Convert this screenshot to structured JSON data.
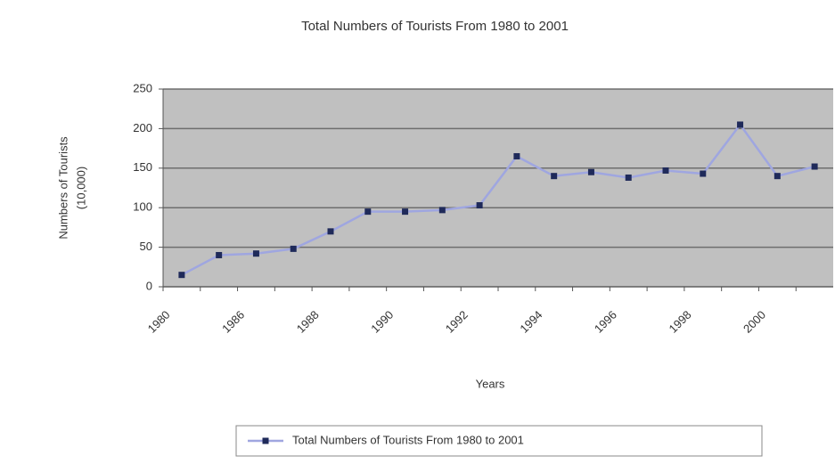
{
  "chart_data": {
    "type": "line",
    "title": "Total Numbers of Tourists From 1980 to 2001",
    "ylabel": [
      "Numbers of Tourists",
      "(10,000)"
    ],
    "xlabel": "Years",
    "categories": [
      "1980",
      null,
      "1986",
      null,
      "1988",
      null,
      "1990",
      null,
      "1992",
      null,
      "1994",
      null,
      "1996",
      null,
      "1998",
      null,
      "2000",
      null
    ],
    "series": [
      {
        "name": "Total Numbers of Tourists From 1980 to 2001",
        "color": "#9fa6e0",
        "marker_color": "#1f2a5a",
        "values": [
          15,
          40,
          42,
          48,
          70,
          95,
          95,
          97,
          103,
          165,
          140,
          145,
          138,
          147,
          143,
          205,
          140,
          152
        ]
      }
    ],
    "ylim": [
      0,
      250
    ],
    "yticks": [
      0,
      50,
      100,
      150,
      200,
      250
    ],
    "grid": true,
    "legend": "bottom"
  }
}
